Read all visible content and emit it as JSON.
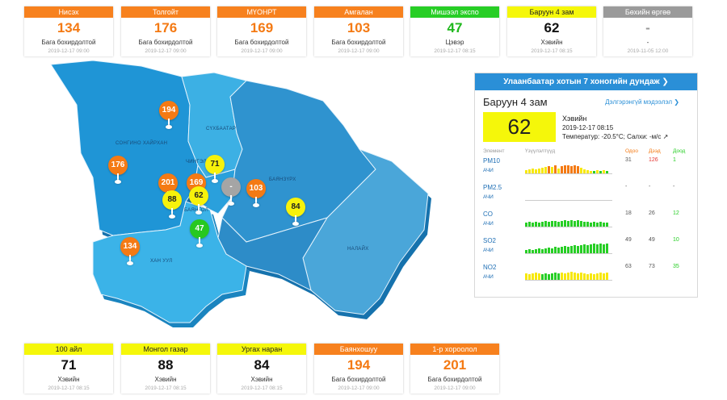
{
  "top_cards": [
    {
      "name": "Нисэх",
      "value": "134",
      "status": "Бага бохирдолтой",
      "time": "2019-12-17 09:00",
      "level": "orange"
    },
    {
      "name": "Толгойт",
      "value": "176",
      "status": "Бага бохирдолтой",
      "time": "2019-12-17 09:00",
      "level": "orange"
    },
    {
      "name": "МҮОНРТ",
      "value": "169",
      "status": "Бага бохирдолтой",
      "time": "2019-12-17 09:00",
      "level": "orange"
    },
    {
      "name": "Амгалан",
      "value": "103",
      "status": "Бага бохирдолтой",
      "time": "2019-12-17 09:00",
      "level": "orange"
    },
    {
      "name": "Мишээл экспо",
      "value": "47",
      "status": "Цэвэр",
      "time": "2019-12-17 08:15",
      "level": "green"
    },
    {
      "name": "Баруун 4 зам",
      "value": "62",
      "status": "Хэвийн",
      "time": "2019-12-17 08:15",
      "level": "yellow"
    },
    {
      "name": "Бөхийн өргөө",
      "value": "-",
      "status": "-",
      "time": "2019-11-05 12:00",
      "level": "gray"
    }
  ],
  "bottom_cards": [
    {
      "name": "100 айл",
      "value": "71",
      "status": "Хэвийн",
      "time": "2019-12-17 08:15",
      "level": "yellow"
    },
    {
      "name": "Монгол газар",
      "value": "88",
      "status": "Хэвийн",
      "time": "2019-12-17 08:15",
      "level": "yellow"
    },
    {
      "name": "Ургах наран",
      "value": "84",
      "status": "Хэвийн",
      "time": "2019-12-17 08:15",
      "level": "yellow"
    },
    {
      "name": "Баянхошуу",
      "value": "194",
      "status": "Бага бохирдолтой",
      "time": "2019-12-17 09:00",
      "level": "orange"
    },
    {
      "name": "1-р хороолол",
      "value": "201",
      "status": "Бага бохирдолтой",
      "time": "2019-12-17 09:00",
      "level": "orange"
    }
  ],
  "map": {
    "labels": [
      "СҮХБААТАР",
      "СОНГИНО ХАЙРХАН",
      "ЧИНГЭЛТЭЙ",
      "БАЯНЗҮРХ",
      "БАЯНГОЛ",
      "ХАН УУЛ",
      "НАЛАЙХ"
    ],
    "markers": [
      {
        "value": "194",
        "level": "orange"
      },
      {
        "value": "176",
        "level": "orange"
      },
      {
        "value": "201",
        "level": "orange"
      },
      {
        "value": "169",
        "level": "orange"
      },
      {
        "value": "71",
        "level": "yellow"
      },
      {
        "value": "-",
        "level": "gray"
      },
      {
        "value": "103",
        "level": "orange"
      },
      {
        "value": "88",
        "level": "yellow"
      },
      {
        "value": "62",
        "level": "yellow"
      },
      {
        "value": "84",
        "level": "yellow"
      },
      {
        "value": "47",
        "level": "green"
      },
      {
        "value": "134",
        "level": "orange"
      }
    ]
  },
  "panel": {
    "title": "Улаанбаатар хотын 7 хоногийн дундаж ❯",
    "station": "Баруун 4 зам",
    "more_link": "Дэлгэрэнгүй мэдээлэл ❯",
    "aqi": "62",
    "status": "Хэвийн",
    "datetime": "2019-12-17 08:15",
    "weather": "Температур: -20.5°C; Салхи:   -м/с ↗",
    "col_element": "Элемент",
    "col_indicator": "Үзүүлэлтүүд",
    "col_now": "Одоо",
    "col_max": "Дээд",
    "col_min": "Доод",
    "pollutants": [
      {
        "name": "PM10",
        "kind": "АЧИ",
        "now": "31",
        "max": "126",
        "min": "1"
      },
      {
        "name": "PM2.5",
        "kind": "АЧИ",
        "now": "-",
        "max": "-",
        "min": "-"
      },
      {
        "name": "CO",
        "kind": "АЧИ",
        "now": "18",
        "max": "26",
        "min": "12"
      },
      {
        "name": "SO2",
        "kind": "АЧИ",
        "now": "49",
        "max": "49",
        "min": "10"
      },
      {
        "name": "NO2",
        "kind": "АЧИ",
        "now": "63",
        "max": "73",
        "min": "35"
      }
    ]
  },
  "colors": {
    "orange": "#f47a14",
    "yellow": "#f5f70a",
    "green": "#27ce25",
    "gray": "#9a9a9a",
    "blue": "#2a8fd7"
  }
}
